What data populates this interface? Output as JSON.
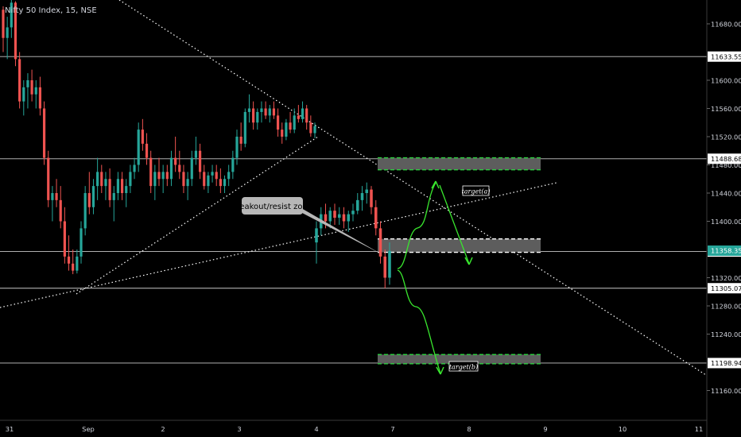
{
  "header": {
    "symbol_title": "Nifty 50 Index, 15, NSE"
  },
  "colors": {
    "background": "#000000",
    "up": "#26a69a",
    "down": "#ef5350",
    "axis_text": "#d1d4dc",
    "level_line": "#c8c8c8",
    "zone_fill": "#5d5d5d",
    "zone_border_green": "#2ecc40",
    "arrow_green": "#39e62e",
    "price_tag_bg": "#ffffff",
    "price_tag_text": "#000000",
    "last_price_bg": "#26a69a",
    "callout_bg": "#b7b7b7"
  },
  "chart_data": {
    "type": "candlestick",
    "title": "Nifty 50 Index, 15, NSE",
    "y_ticks": [
      11680,
      11640,
      11600,
      11560,
      11520,
      11480,
      11440,
      11400,
      11360,
      11320,
      11280,
      11240,
      11200,
      11160
    ],
    "y_tick_labels": [
      "11680.00",
      "",
      "11600.00",
      "11560.00",
      "11520.00",
      "11480.00",
      "11440.00",
      "11400.00",
      "",
      "11320.00",
      "11280.00",
      "11240.00",
      "",
      "11160.00"
    ],
    "ylim": [
      11158,
      11712
    ],
    "x_tick_labels": [
      "31",
      "Sep",
      "2",
      "3",
      "4",
      "7",
      "8",
      "9",
      "10",
      "11"
    ],
    "horizontal_levels": [
      {
        "label": "11633.55",
        "value": 11633.55
      },
      {
        "label": "11488.68",
        "value": 11488.68
      },
      {
        "label": "11357.06",
        "value": 11357.06
      },
      {
        "label": "11305.07",
        "value": 11305.07
      },
      {
        "label": "11198.94",
        "value": 11198.94
      }
    ],
    "last_price": {
      "label": "11358.35",
      "value": 11358.35
    },
    "zones": [
      {
        "name": "target(a) zone",
        "y_top": 11490,
        "y_bottom": 11473
      },
      {
        "name": "breakout zone",
        "y_top": 11375,
        "y_bottom": 11356
      },
      {
        "name": "target(b) zone",
        "y_top": 11211,
        "y_bottom": 11198
      }
    ],
    "annotations": {
      "callout": "breakout/resist zone",
      "target_a": "target(a)",
      "target_b": "target(b)"
    },
    "segments": [
      {
        "name": "Aug 31 - Sep 3",
        "candles": [
          [
            11700,
            11705,
            11640,
            11660
          ],
          [
            11660,
            11690,
            11630,
            11675
          ],
          [
            11675,
            11720,
            11660,
            11710
          ],
          [
            11710,
            11712,
            11620,
            11630
          ],
          [
            11630,
            11640,
            11560,
            11570
          ],
          [
            11570,
            11600,
            11550,
            11590
          ],
          [
            11590,
            11610,
            11560,
            11600
          ],
          [
            11600,
            11615,
            11570,
            11580
          ],
          [
            11580,
            11600,
            11560,
            11590
          ],
          [
            11590,
            11605,
            11550,
            11560
          ],
          [
            11560,
            11570,
            11480,
            11490
          ],
          [
            11490,
            11500,
            11420,
            11430
          ],
          [
            11430,
            11450,
            11400,
            11440
          ],
          [
            11440,
            11460,
            11420,
            11430
          ],
          [
            11430,
            11450,
            11390,
            11400
          ],
          [
            11400,
            11420,
            11340,
            11350
          ],
          [
            11350,
            11380,
            11330,
            11340
          ],
          [
            11340,
            11360,
            11325,
            11330
          ],
          [
            11330,
            11360,
            11326,
            11350
          ],
          [
            11350,
            11400,
            11340,
            11390
          ],
          [
            11390,
            11450,
            11380,
            11440
          ],
          [
            11440,
            11470,
            11410,
            11420
          ],
          [
            11420,
            11460,
            11410,
            11450
          ],
          [
            11450,
            11490,
            11430,
            11470
          ],
          [
            11470,
            11480,
            11440,
            11450
          ],
          [
            11450,
            11470,
            11430,
            11460
          ],
          [
            11460,
            11475,
            11420,
            11430
          ],
          [
            11430,
            11450,
            11400,
            11440
          ],
          [
            11440,
            11470,
            11430,
            11460
          ],
          [
            11460,
            11470,
            11430,
            11440
          ],
          [
            11440,
            11460,
            11420,
            11450
          ],
          [
            11450,
            11480,
            11440,
            11470
          ],
          [
            11470,
            11490,
            11460,
            11480
          ],
          [
            11480,
            11540,
            11470,
            11530
          ],
          [
            11530,
            11545,
            11500,
            11510
          ],
          [
            11510,
            11525,
            11480,
            11490
          ],
          [
            11490,
            11500,
            11440,
            11450
          ],
          [
            11450,
            11480,
            11430,
            11470
          ],
          [
            11470,
            11490,
            11450,
            11460
          ],
          [
            11460,
            11480,
            11440,
            11470
          ],
          [
            11470,
            11480,
            11450,
            11460
          ],
          [
            11460,
            11500,
            11450,
            11490
          ],
          [
            11490,
            11520,
            11470,
            11480
          ],
          [
            11480,
            11500,
            11460,
            11470
          ],
          [
            11470,
            11480,
            11440,
            11450
          ],
          [
            11450,
            11470,
            11430,
            11460
          ],
          [
            11460,
            11500,
            11450,
            11490
          ],
          [
            11490,
            11520,
            11480,
            11500
          ],
          [
            11500,
            11510,
            11460,
            11470
          ],
          [
            11470,
            11480,
            11445,
            11450
          ],
          [
            11450,
            11470,
            11440,
            11465
          ],
          [
            11465,
            11480,
            11455,
            11470
          ],
          [
            11470,
            11480,
            11450,
            11460
          ],
          [
            11460,
            11475,
            11440,
            11450
          ],
          [
            11450,
            11465,
            11440,
            11460
          ],
          [
            11460,
            11480,
            11450,
            11470
          ],
          [
            11470,
            11500,
            11460,
            11490
          ],
          [
            11490,
            11530,
            11480,
            11520
          ],
          [
            11520,
            11540,
            11500,
            11510
          ],
          [
            11510,
            11560,
            11505,
            11555
          ],
          [
            11555,
            11580,
            11540,
            11560
          ],
          [
            11560,
            11570,
            11530,
            11540
          ],
          [
            11540,
            11560,
            11530,
            11555
          ],
          [
            11555,
            11570,
            11540,
            11560
          ],
          [
            11560,
            11570,
            11545,
            11550
          ],
          [
            11550,
            11565,
            11540,
            11560
          ],
          [
            11560,
            11570,
            11545,
            11550
          ],
          [
            11550,
            11560,
            11520,
            11530
          ],
          [
            11530,
            11540,
            11510,
            11520
          ],
          [
            11520,
            11545,
            11515,
            11540
          ],
          [
            11540,
            11555,
            11525,
            11530
          ],
          [
            11530,
            11560,
            11525,
            11550
          ],
          [
            11550,
            11565,
            11540,
            11545
          ],
          [
            11545,
            11570,
            11540,
            11560
          ],
          [
            11560,
            11565,
            11530,
            11540
          ],
          [
            11540,
            11550,
            11520,
            11525
          ],
          [
            11525,
            11540,
            11518,
            11535
          ]
        ]
      },
      {
        "name": "Sep 4",
        "candles": [
          [
            11370,
            11400,
            11340,
            11390
          ],
          [
            11390,
            11420,
            11380,
            11410
          ],
          [
            11410,
            11425,
            11390,
            11400
          ],
          [
            11400,
            11420,
            11390,
            11415
          ],
          [
            11415,
            11425,
            11395,
            11405
          ],
          [
            11405,
            11420,
            11395,
            11410
          ],
          [
            11410,
            11420,
            11390,
            11400
          ],
          [
            11400,
            11415,
            11385,
            11410
          ],
          [
            11410,
            11425,
            11400,
            11415
          ],
          [
            11415,
            11440,
            11410,
            11430
          ],
          [
            11430,
            11450,
            11415,
            11440
          ],
          [
            11440,
            11455,
            11425,
            11445
          ],
          [
            11445,
            11450,
            11410,
            11420
          ],
          [
            11420,
            11430,
            11380,
            11390
          ],
          [
            11390,
            11400,
            11340,
            11350
          ],
          [
            11350,
            11360,
            11305,
            11320
          ],
          [
            11320,
            11370,
            11310,
            11358
          ]
        ]
      }
    ]
  }
}
